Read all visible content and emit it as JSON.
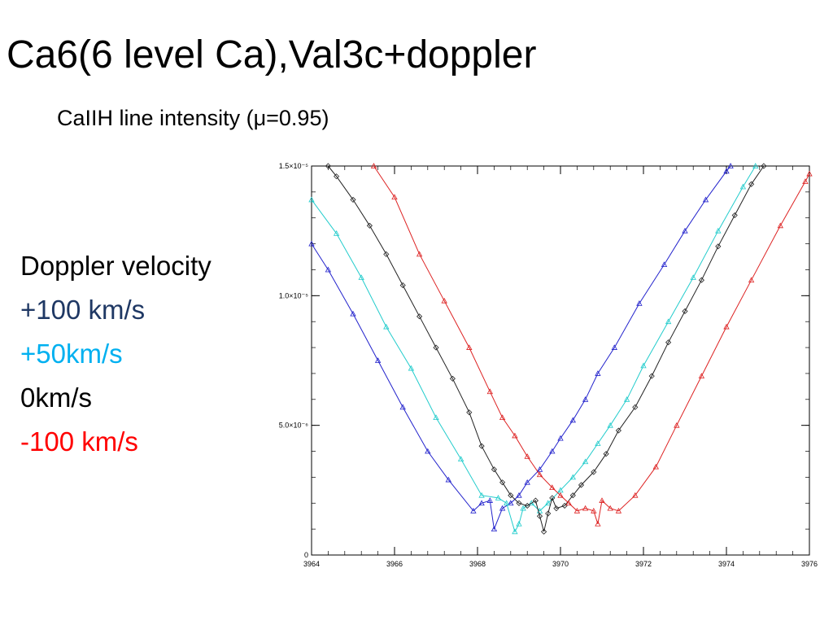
{
  "slide": {
    "title": "Ca6(6 level Ca),Val3c+doppler",
    "subtitle": "CaIIH line  intensity (μ=0.95)"
  },
  "legend": {
    "heading": "Doppler velocity",
    "entries": [
      {
        "text": "+100 km/s",
        "color": "#1f3864"
      },
      {
        "text": "+50km/s",
        "color": "#00b0f0"
      },
      {
        "text": "0km/s",
        "color": "#000000"
      },
      {
        "text": "-100 km/s",
        "color": "#ff0000"
      }
    ]
  },
  "chart_data": {
    "type": "line",
    "title": "",
    "xlabel": "",
    "ylabel": "",
    "xlim": [
      3964,
      3976
    ],
    "ylim": [
      0,
      1.5e-05
    ],
    "x_ticks": [
      "3964",
      "3966",
      "3968",
      "3970",
      "3972",
      "3974",
      "3976"
    ],
    "y_ticks": [
      "0",
      "5.0×10⁻⁶",
      "1.0×10⁻⁵",
      "1.5×10⁻⁵"
    ],
    "y_tick_values": [
      0,
      5e-06,
      1e-05,
      1.5e-05
    ],
    "grid": false,
    "series": [
      {
        "color": "#2222cc",
        "marker": "triangle",
        "points": [
          [
            3964.0,
            1.2e-05
          ],
          [
            3964.4,
            1.1e-05
          ],
          [
            3965.0,
            9.3e-06
          ],
          [
            3965.6,
            7.5e-06
          ],
          [
            3966.2,
            5.7e-06
          ],
          [
            3966.8,
            4e-06
          ],
          [
            3967.3,
            2.9e-06
          ],
          [
            3967.9,
            1.7e-06
          ],
          [
            3968.1,
            2e-06
          ],
          [
            3968.3,
            2.1e-06
          ],
          [
            3968.4,
            1e-06
          ],
          [
            3968.6,
            1.8e-06
          ],
          [
            3968.8,
            2e-06
          ],
          [
            3969.0,
            2.3e-06
          ],
          [
            3969.2,
            2.8e-06
          ],
          [
            3969.5,
            3.3e-06
          ],
          [
            3969.8,
            4e-06
          ],
          [
            3970.0,
            4.5e-06
          ],
          [
            3970.3,
            5.2e-06
          ],
          [
            3970.6,
            6e-06
          ],
          [
            3970.9,
            7e-06
          ],
          [
            3971.3,
            8e-06
          ],
          [
            3971.9,
            9.7e-06
          ],
          [
            3972.5,
            1.12e-05
          ],
          [
            3973.0,
            1.25e-05
          ],
          [
            3973.5,
            1.37e-05
          ],
          [
            3974.0,
            1.48e-05
          ],
          [
            3974.1,
            1.5e-05
          ]
        ]
      },
      {
        "color": "#22cccc",
        "marker": "triangle",
        "points": [
          [
            3964.0,
            1.37e-05
          ],
          [
            3964.6,
            1.24e-05
          ],
          [
            3965.2,
            1.07e-05
          ],
          [
            3965.8,
            8.8e-06
          ],
          [
            3966.4,
            7.2e-06
          ],
          [
            3967.0,
            5.3e-06
          ],
          [
            3967.6,
            3.7e-06
          ],
          [
            3968.1,
            2.3e-06
          ],
          [
            3968.5,
            2.2e-06
          ],
          [
            3968.7,
            2e-06
          ],
          [
            3968.9,
            9e-07
          ],
          [
            3969.0,
            1.2e-06
          ],
          [
            3969.1,
            1.8e-06
          ],
          [
            3969.3,
            2e-06
          ],
          [
            3969.5,
            1.7e-06
          ],
          [
            3969.7,
            2e-06
          ],
          [
            3970.0,
            2.5e-06
          ],
          [
            3970.3,
            3e-06
          ],
          [
            3970.6,
            3.6e-06
          ],
          [
            3970.9,
            4.3e-06
          ],
          [
            3971.2,
            5e-06
          ],
          [
            3971.6,
            6e-06
          ],
          [
            3972.0,
            7.3e-06
          ],
          [
            3972.6,
            9e-06
          ],
          [
            3973.2,
            1.07e-05
          ],
          [
            3973.8,
            1.25e-05
          ],
          [
            3974.4,
            1.42e-05
          ],
          [
            3974.7,
            1.5e-05
          ]
        ]
      },
      {
        "color": "#222222",
        "marker": "diamond",
        "points": [
          [
            3964.4,
            1.5e-05
          ],
          [
            3964.6,
            1.46e-05
          ],
          [
            3965.0,
            1.37e-05
          ],
          [
            3965.4,
            1.27e-05
          ],
          [
            3965.8,
            1.16e-05
          ],
          [
            3966.2,
            1.04e-05
          ],
          [
            3966.6,
            9.2e-06
          ],
          [
            3967.0,
            8e-06
          ],
          [
            3967.4,
            6.8e-06
          ],
          [
            3967.8,
            5.5e-06
          ],
          [
            3968.1,
            4.2e-06
          ],
          [
            3968.4,
            3.3e-06
          ],
          [
            3968.6,
            2.8e-06
          ],
          [
            3968.8,
            2.3e-06
          ],
          [
            3969.0,
            2e-06
          ],
          [
            3969.2,
            1.9e-06
          ],
          [
            3969.4,
            2.1e-06
          ],
          [
            3969.5,
            1.5e-06
          ],
          [
            3969.6,
            9e-07
          ],
          [
            3969.7,
            1.6e-06
          ],
          [
            3969.8,
            2.2e-06
          ],
          [
            3969.9,
            1.8e-06
          ],
          [
            3970.1,
            1.9e-06
          ],
          [
            3970.3,
            2.3e-06
          ],
          [
            3970.5,
            2.7e-06
          ],
          [
            3970.8,
            3.2e-06
          ],
          [
            3971.1,
            3.9e-06
          ],
          [
            3971.4,
            4.8e-06
          ],
          [
            3971.8,
            5.7e-06
          ],
          [
            3972.2,
            6.9e-06
          ],
          [
            3972.6,
            8.2e-06
          ],
          [
            3973.0,
            9.4e-06
          ],
          [
            3973.4,
            1.06e-05
          ],
          [
            3973.8,
            1.19e-05
          ],
          [
            3974.2,
            1.31e-05
          ],
          [
            3974.6,
            1.43e-05
          ],
          [
            3974.9,
            1.5e-05
          ]
        ]
      },
      {
        "color": "#dd2222",
        "marker": "triangle",
        "points": [
          [
            3965.5,
            1.5e-05
          ],
          [
            3966.0,
            1.38e-05
          ],
          [
            3966.6,
            1.16e-05
          ],
          [
            3967.2,
            9.8e-06
          ],
          [
            3967.8,
            8e-06
          ],
          [
            3968.3,
            6.3e-06
          ],
          [
            3968.6,
            5.3e-06
          ],
          [
            3968.9,
            4.6e-06
          ],
          [
            3969.2,
            3.8e-06
          ],
          [
            3969.5,
            3.1e-06
          ],
          [
            3969.8,
            2.6e-06
          ],
          [
            3970.0,
            2.3e-06
          ],
          [
            3970.2,
            2e-06
          ],
          [
            3970.4,
            1.7e-06
          ],
          [
            3970.6,
            1.8e-06
          ],
          [
            3970.8,
            1.7e-06
          ],
          [
            3970.9,
            1.2e-06
          ],
          [
            3971.0,
            2.1e-06
          ],
          [
            3971.2,
            1.8e-06
          ],
          [
            3971.4,
            1.7e-06
          ],
          [
            3971.8,
            2.3e-06
          ],
          [
            3972.3,
            3.4e-06
          ],
          [
            3972.8,
            5e-06
          ],
          [
            3973.4,
            6.9e-06
          ],
          [
            3974.0,
            8.8e-06
          ],
          [
            3974.6,
            1.06e-05
          ],
          [
            3975.3,
            1.27e-05
          ],
          [
            3975.9,
            1.44e-05
          ],
          [
            3976.0,
            1.47e-05
          ]
        ]
      }
    ]
  }
}
